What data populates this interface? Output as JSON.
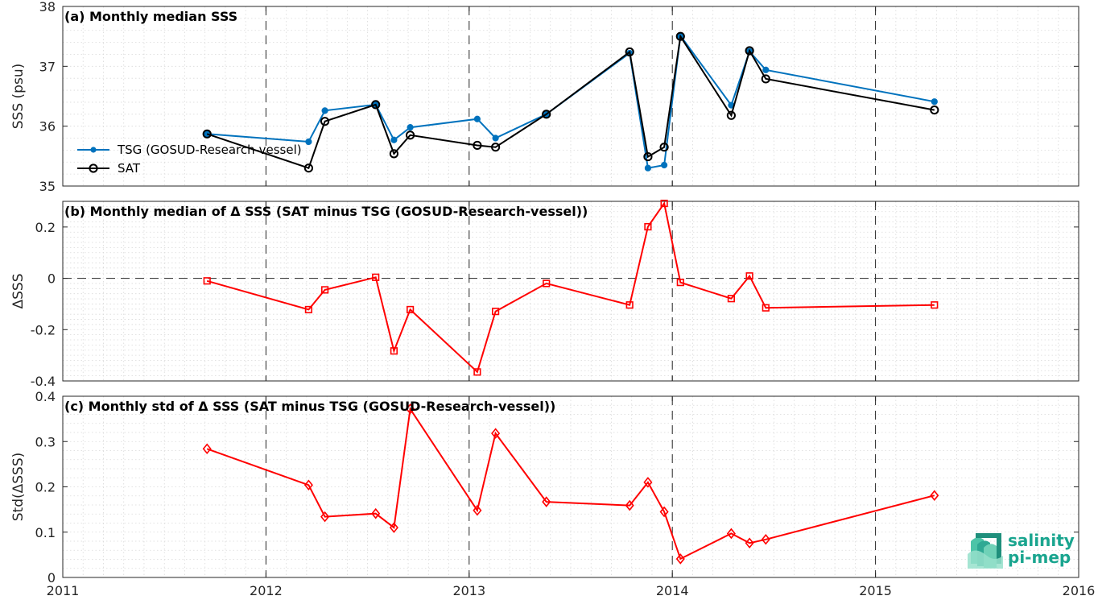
{
  "chart_data": [
    {
      "type": "line",
      "title": "(a) Monthly median SSS",
      "ylabel": "SSS (psu)",
      "xlim": [
        2011,
        2016
      ],
      "ylim": [
        35,
        38
      ],
      "xticks": [
        "2011",
        "2012",
        "2013",
        "2014",
        "2015",
        "2016"
      ],
      "yticks": [
        "35",
        "36",
        "37",
        "38"
      ],
      "legend_position": "left",
      "series": [
        {
          "name": "TSG (GOSUD-Research-vessel)",
          "color": "#0072bd",
          "marker": "dot",
          "x": [
            2011.71,
            2012.21,
            2012.29,
            2012.54,
            2012.63,
            2012.71,
            2013.04,
            2013.13,
            2013.38,
            2013.79,
            2013.88,
            2013.96,
            2014.04,
            2014.29,
            2014.38,
            2014.46,
            2015.29
          ],
          "y": [
            35.87,
            35.74,
            36.26,
            36.36,
            35.77,
            35.98,
            36.12,
            35.8,
            36.2,
            37.22,
            35.3,
            35.35,
            37.51,
            36.35,
            37.25,
            36.94,
            36.41
          ]
        },
        {
          "name": "SAT",
          "color": "#000000",
          "marker": "circle",
          "x": [
            2011.71,
            2012.21,
            2012.29,
            2012.54,
            2012.63,
            2012.71,
            2013.04,
            2013.13,
            2013.38,
            2013.79,
            2013.88,
            2013.96,
            2014.04,
            2014.29,
            2014.38,
            2014.46,
            2015.29
          ],
          "y": [
            35.87,
            35.3,
            36.08,
            36.36,
            35.54,
            35.85,
            35.68,
            35.65,
            36.2,
            37.24,
            35.49,
            35.65,
            37.5,
            36.18,
            37.26,
            36.79,
            36.27
          ]
        }
      ]
    },
    {
      "type": "line",
      "title": "(b) Monthly median of Δ SSS (SAT minus TSG (GOSUD-Research-vessel))",
      "ylabel": "ΔSSS",
      "xlim": [
        2011,
        2016
      ],
      "ylim": [
        -0.4,
        0.3
      ],
      "xticks": [
        "2011",
        "2012",
        "2013",
        "2014",
        "2015",
        "2016"
      ],
      "yticks": [
        "-0.4",
        "-0.2",
        "0",
        "0.2"
      ],
      "series": [
        {
          "color": "#ff0000",
          "marker": "square",
          "x": [
            2011.71,
            2012.21,
            2012.29,
            2012.54,
            2012.63,
            2012.71,
            2013.04,
            2013.13,
            2013.38,
            2013.79,
            2013.88,
            2013.96,
            2014.04,
            2014.29,
            2014.38,
            2014.46,
            2015.29
          ],
          "y": [
            -0.01,
            -0.122,
            -0.045,
            0.004,
            -0.283,
            -0.122,
            -0.365,
            -0.129,
            -0.02,
            -0.104,
            0.201,
            0.292,
            -0.016,
            -0.079,
            0.009,
            -0.115,
            -0.104
          ]
        }
      ]
    },
    {
      "type": "line",
      "title": "(c) Monthly std of Δ SSS (SAT minus TSG (GOSUD-Research-vessel))",
      "ylabel": "Std(ΔSSS)",
      "xlim": [
        2011,
        2016
      ],
      "ylim": [
        0,
        0.4
      ],
      "xticks": [
        "2011",
        "2012",
        "2013",
        "2014",
        "2015",
        "2016"
      ],
      "yticks": [
        "0",
        "0.1",
        "0.2",
        "0.3",
        "0.4"
      ],
      "series": [
        {
          "color": "#ff0000",
          "marker": "diamond",
          "x": [
            2011.71,
            2012.21,
            2012.29,
            2012.54,
            2012.63,
            2012.71,
            2013.04,
            2013.13,
            2013.38,
            2013.79,
            2013.88,
            2013.96,
            2014.04,
            2014.29,
            2014.38,
            2014.46,
            2015.29
          ],
          "y": [
            0.284,
            0.204,
            0.134,
            0.141,
            0.11,
            0.372,
            0.148,
            0.318,
            0.167,
            0.159,
            0.21,
            0.145,
            0.041,
            0.097,
            0.076,
            0.084,
            0.181
          ]
        }
      ]
    }
  ],
  "logo": {
    "line1": "salinity",
    "line2": "pi-mep",
    "color": "#1aa58f"
  }
}
